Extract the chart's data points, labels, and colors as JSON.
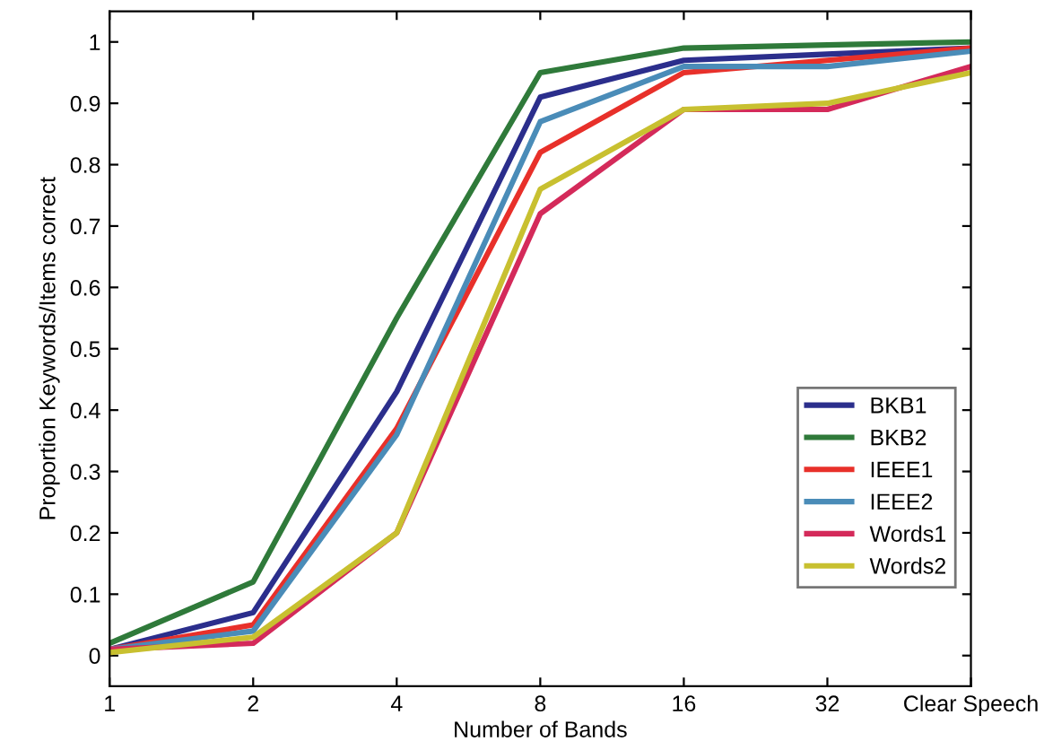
{
  "chart_data": {
    "type": "line",
    "xlabel": "Number of Bands",
    "ylabel": "Proportion Keywords/Items correct",
    "categories": [
      "1",
      "2",
      "4",
      "8",
      "16",
      "32",
      "Clear Speech"
    ],
    "series": [
      {
        "name": "BKB1",
        "color": "#2b2e8c",
        "values": [
          0.01,
          0.07,
          0.43,
          0.91,
          0.97,
          0.98,
          0.99
        ]
      },
      {
        "name": "BKB2",
        "color": "#2f7a3a",
        "values": [
          0.02,
          0.12,
          0.55,
          0.95,
          0.99,
          0.995,
          1.0
        ]
      },
      {
        "name": "IEEE1",
        "color": "#e8302a",
        "values": [
          0.01,
          0.05,
          0.37,
          0.82,
          0.95,
          0.97,
          0.99
        ]
      },
      {
        "name": "IEEE2",
        "color": "#4a8cb8",
        "values": [
          0.01,
          0.04,
          0.36,
          0.87,
          0.96,
          0.96,
          0.985
        ]
      },
      {
        "name": "Words1",
        "color": "#d42a5a",
        "values": [
          0.01,
          0.02,
          0.2,
          0.72,
          0.89,
          0.89,
          0.96
        ]
      },
      {
        "name": "Words2",
        "color": "#c8c030",
        "values": [
          0.005,
          0.03,
          0.2,
          0.76,
          0.89,
          0.9,
          0.95
        ]
      }
    ],
    "ylim": [
      -0.05,
      1.05
    ],
    "yticks": [
      0,
      0.1,
      0.2,
      0.3,
      0.4,
      0.5,
      0.6,
      0.7,
      0.8,
      0.9,
      1
    ],
    "legend": "bottom right",
    "grid": false,
    "marker": "none",
    "line_style": "solid"
  }
}
